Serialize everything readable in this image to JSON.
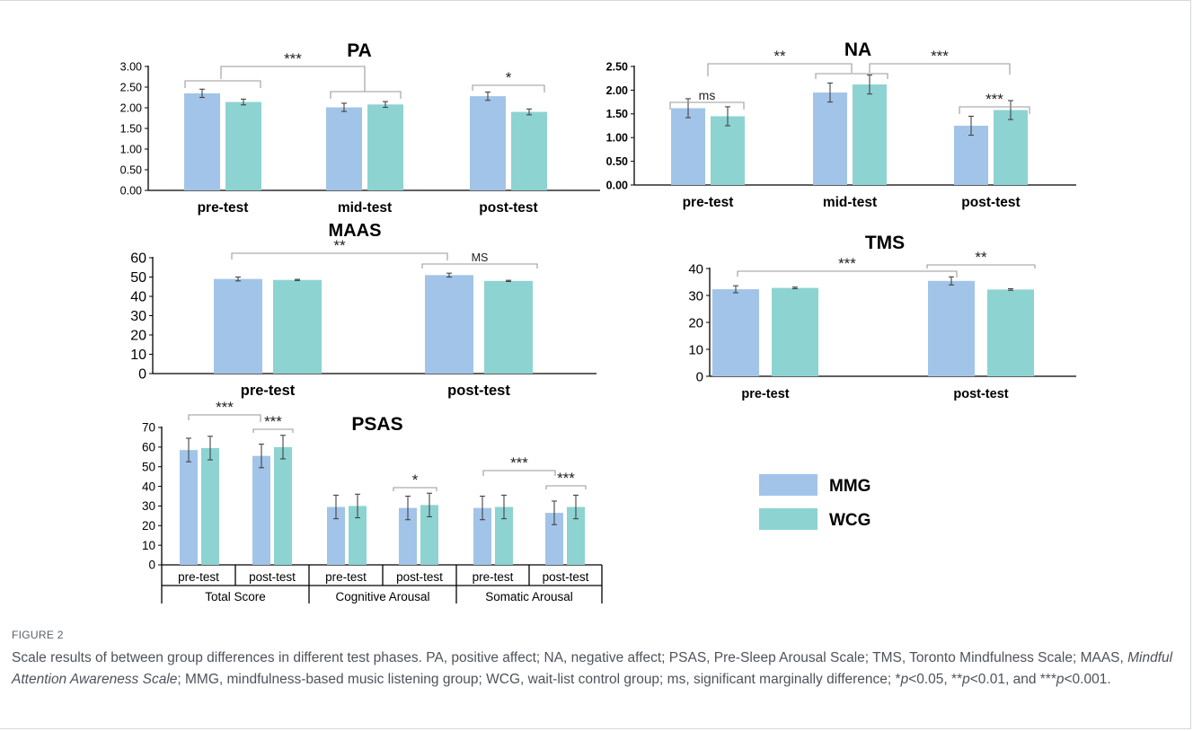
{
  "colors": {
    "MMG": "#a2c4e8",
    "WCG": "#8dd3d2",
    "axis": "#000000",
    "bracket": "#9a9a9a"
  },
  "legend": {
    "items": [
      {
        "label": "MMG",
        "color": "#a2c4e8"
      },
      {
        "label": "WCG",
        "color": "#8dd3d2"
      }
    ]
  },
  "chart_data": [
    {
      "id": "pa",
      "type": "bar",
      "title": "PA",
      "categories": [
        "pre-test",
        "mid-test",
        "post-test"
      ],
      "series": [
        {
          "name": "MMG",
          "values": [
            2.35,
            2.01,
            2.28
          ],
          "errors": [
            0.1,
            0.1,
            0.1
          ]
        },
        {
          "name": "WCG",
          "values": [
            2.14,
            2.08,
            1.9
          ],
          "errors": [
            0.07,
            0.07,
            0.07
          ]
        }
      ],
      "yticks": [
        0,
        0.5,
        1,
        1.5,
        2,
        2.5,
        3
      ],
      "ytick_labels": [
        "0.00",
        "0.50",
        "1.00",
        "1.50",
        "2.00",
        "2.50",
        "3.00"
      ],
      "ylim": [
        0,
        3
      ],
      "annotations": [
        {
          "text": "***"
        },
        {
          "text": "*"
        }
      ]
    },
    {
      "id": "na",
      "type": "bar",
      "title": "NA",
      "categories": [
        "pre-test",
        "mid-test",
        "post-test"
      ],
      "series": [
        {
          "name": "MMG",
          "values": [
            1.62,
            1.95,
            1.25
          ],
          "errors": [
            0.2,
            0.2,
            0.2
          ]
        },
        {
          "name": "WCG",
          "values": [
            1.45,
            2.12,
            1.58
          ],
          "errors": [
            0.2,
            0.2,
            0.2
          ]
        }
      ],
      "yticks": [
        0,
        0.5,
        1,
        1.5,
        2,
        2.5
      ],
      "ytick_labels": [
        "0.00",
        "0.50",
        "1.00",
        "1.50",
        "2.00",
        "2.50"
      ],
      "ylim": [
        0,
        2.5
      ],
      "annotations": [
        {
          "text": "ms"
        },
        {
          "text": "**"
        },
        {
          "text": "***"
        },
        {
          "text": "***"
        }
      ]
    },
    {
      "id": "maas",
      "type": "bar",
      "title": "MAAS",
      "categories": [
        "pre-test",
        "post-test"
      ],
      "series": [
        {
          "name": "MMG",
          "values": [
            49,
            51
          ],
          "errors": [
            1,
            1
          ]
        },
        {
          "name": "WCG",
          "values": [
            48.5,
            48
          ],
          "errors": [
            0.3,
            0.3
          ]
        }
      ],
      "yticks": [
        0,
        10,
        20,
        30,
        40,
        50,
        60
      ],
      "ytick_labels": [
        "0",
        "10",
        "20",
        "30",
        "40",
        "50",
        "60"
      ],
      "ylim": [
        0,
        60
      ],
      "annotations": [
        {
          "text": "**"
        },
        {
          "text": "MS"
        }
      ]
    },
    {
      "id": "tms",
      "type": "bar",
      "title": "TMS",
      "categories": [
        "pre-test",
        "post-test"
      ],
      "series": [
        {
          "name": "MMG",
          "values": [
            32.3,
            35.4
          ],
          "errors": [
            1.3,
            1.5
          ]
        },
        {
          "name": "WCG",
          "values": [
            32.8,
            32.2
          ],
          "errors": [
            0.3,
            0.3
          ]
        }
      ],
      "yticks": [
        0,
        10,
        20,
        30,
        40
      ],
      "ytick_labels": [
        "0",
        "10",
        "20",
        "30",
        "40"
      ],
      "ylim": [
        0,
        40
      ],
      "annotations": [
        {
          "text": "***"
        },
        {
          "text": "**"
        }
      ]
    },
    {
      "id": "psas",
      "type": "bar",
      "title": "PSAS",
      "categories": [
        "pre-test",
        "post-test",
        "pre-test",
        "post-test",
        "pre-test",
        "post-test"
      ],
      "groups": [
        "Total Score",
        "Cognitive Arousal",
        "Somatic Arousal"
      ],
      "series": [
        {
          "name": "MMG",
          "values": [
            58.5,
            55.5,
            29.5,
            29,
            29,
            26.5
          ],
          "errors": [
            6,
            6,
            6,
            6,
            6,
            6
          ]
        },
        {
          "name": "WCG",
          "values": [
            59.5,
            60,
            30,
            30.5,
            29.5,
            29.5
          ],
          "errors": [
            6,
            6,
            6,
            6,
            6,
            6
          ]
        }
      ],
      "yticks": [
        0,
        10,
        20,
        30,
        40,
        50,
        60,
        70
      ],
      "ytick_labels": [
        "0",
        "10",
        "20",
        "30",
        "40",
        "50",
        "60",
        "70"
      ],
      "ylim": [
        0,
        70
      ],
      "annotations": [
        {
          "text": "***"
        },
        {
          "text": "***"
        },
        {
          "text": "*"
        },
        {
          "text": "***"
        },
        {
          "text": "***"
        }
      ]
    }
  ],
  "caption": {
    "label": "FIGURE 2",
    "text_before_italic": "Scale results of between group differences in different test phases. PA, positive affect; NA, negative affect; PSAS, Pre-Sleep Arousal Scale; TMS, Toronto Mindfulness Scale; MAAS, ",
    "italic": "Mindful Attention Awareness Scale",
    "text_after_italic": "; MMG, mindfulness-based music listening group; WCG, wait-list control group; ms, significant marginally difference; ",
    "sig1_pre": "*",
    "sig1_p": "p",
    "sig1_post": "<0.05, ",
    "sig2_pre": "**",
    "sig2_p": "p",
    "sig2_post": "<0.01, and ",
    "sig3_pre": "***",
    "sig3_p": "p",
    "sig3_post": "<0.001."
  }
}
